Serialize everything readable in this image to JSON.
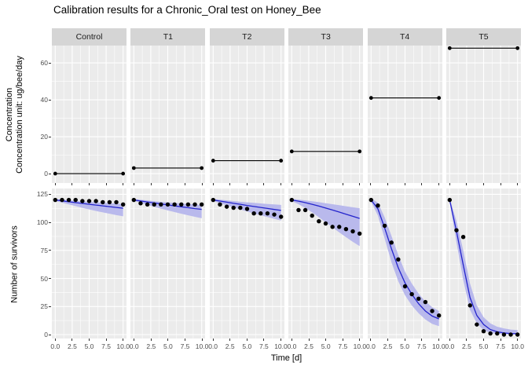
{
  "chart_data": {
    "type": "line",
    "title": "Calibration results for a Chronic_Oral test on Honey_Bee",
    "facets": [
      "Control",
      "T1",
      "T2",
      "T3",
      "T4",
      "T5"
    ],
    "legend_position": "none",
    "grid": "on",
    "x": {
      "label": "Time [d]",
      "tick_labels": [
        "0.0",
        "2.5",
        "5.0",
        "7.5",
        "10.0"
      ],
      "tick_values": [
        0,
        2.5,
        5,
        7.5,
        10
      ],
      "minor_ticks": [
        1.25,
        3.75,
        6.25,
        8.75
      ],
      "lim": [
        -0.5,
        10.5
      ]
    },
    "concentration_row": {
      "ylabel_line1": "Concentration",
      "ylabel_line2": "Concentration unit: ug/bee/day",
      "yticks": [
        0,
        20,
        40,
        60
      ],
      "yminor": [
        10,
        30,
        50
      ],
      "ylim": [
        -5.1,
        69.4
      ],
      "series_type": "constant concentration per facet, line with endpoint dots at day 0 and day 10",
      "values": [
        0,
        3,
        7,
        12,
        41,
        68
      ]
    },
    "survivor_row": {
      "ylabel": "Number of survivors",
      "yticks": [
        0,
        25,
        50,
        75,
        100,
        125
      ],
      "yminor": [
        12.5,
        37.5,
        62.5,
        87.5,
        112.5
      ],
      "ylim": [
        -3.5,
        130.2
      ],
      "days": [
        0,
        1,
        2,
        3,
        4,
        5,
        6,
        7,
        8,
        9,
        10
      ],
      "facet_series": {
        "Control": {
          "observed": [
            120,
            120,
            120,
            120,
            119,
            119,
            119,
            118,
            118,
            118,
            116
          ],
          "fit": [
            120,
            119.2,
            118.4,
            117.6,
            116.9,
            116.1,
            115.4,
            114.7,
            114,
            113.3,
            112.6
          ],
          "ci_upper": [
            120.8,
            120.2,
            119.7,
            119.2,
            118.7,
            118.3,
            117.9,
            117.5,
            117.1,
            116.7,
            116.3
          ],
          "ci_lower": [
            119.2,
            117.6,
            116,
            114.5,
            113,
            111.6,
            110.2,
            108.9,
            107.7,
            106.5,
            105.4
          ]
        },
        "T1": {
          "observed": [
            120,
            117,
            116,
            116,
            116,
            116,
            116,
            116,
            116,
            116,
            116
          ],
          "fit": [
            120,
            119.1,
            118.2,
            117.3,
            116.4,
            115.6,
            114.7,
            113.9,
            113.1,
            112.3,
            111.6
          ],
          "ci_upper": [
            120.8,
            120.1,
            119.5,
            118.9,
            118.3,
            117.8,
            117.3,
            116.8,
            116.3,
            115.9,
            115.5
          ],
          "ci_lower": [
            119.2,
            117.4,
            115.6,
            113.9,
            112.3,
            110.7,
            109.2,
            107.7,
            106.3,
            105,
            103.7
          ]
        },
        "T2": {
          "observed": [
            120,
            116,
            114,
            113,
            113,
            112,
            108,
            108,
            108,
            107,
            105
          ],
          "fit": [
            120,
            119,
            118,
            117,
            116.1,
            115.1,
            114.2,
            113.3,
            112.4,
            111.5,
            110.7
          ],
          "ci_upper": [
            120.9,
            120.2,
            119.6,
            119,
            118.4,
            117.9,
            117.4,
            116.9,
            116.4,
            116,
            115.6
          ],
          "ci_lower": [
            119.1,
            117.1,
            115.2,
            113.3,
            111.5,
            109.7,
            108,
            106.3,
            104.7,
            103.2,
            101.7
          ]
        },
        "T3": {
          "observed": [
            120,
            111,
            111,
            106,
            101,
            99,
            96,
            96,
            94,
            92,
            90
          ],
          "fit": [
            120,
            118.9,
            117.6,
            116.1,
            114.5,
            112.8,
            111,
            109.2,
            107.3,
            105.4,
            103.5
          ],
          "ci_upper": [
            121,
            120.3,
            119.6,
            118.8,
            118,
            117.1,
            116.2,
            115.3,
            114.4,
            113.5,
            112.6
          ],
          "ci_lower": [
            119,
            116.2,
            112.8,
            108.9,
            104.6,
            100.1,
            95.6,
            91.1,
            86.8,
            82.7,
            78.8
          ]
        },
        "T4": {
          "observed": [
            120,
            115,
            97,
            82,
            67,
            43,
            36,
            32,
            29,
            21,
            17
          ],
          "fit": [
            120,
            112,
            95,
            76.5,
            59.5,
            46,
            36,
            27.5,
            21,
            16.5,
            14
          ],
          "ci_upper": [
            121.5,
            117.5,
            104.5,
            88,
            71,
            56,
            45.5,
            36.5,
            29.5,
            24.5,
            21
          ],
          "ci_lower": [
            118.5,
            106,
            85.5,
            64.5,
            47.5,
            35,
            26,
            19,
            13.5,
            9.5,
            7.5
          ]
        },
        "T5": {
          "observed": [
            120,
            93,
            87,
            26,
            9,
            3,
            1,
            1,
            0,
            0,
            0
          ],
          "fit": [
            120,
            92,
            62,
            33,
            17,
            9,
            4.5,
            2.5,
            1.5,
            1,
            0.8
          ],
          "ci_upper": [
            121.5,
            101,
            75,
            45.5,
            26,
            15.5,
            10,
            7,
            5.5,
            4.5,
            4
          ],
          "ci_lower": [
            118.5,
            82,
            48.5,
            22,
            10,
            4,
            1.5,
            0.6,
            0.3,
            0.2,
            0.1
          ]
        }
      }
    },
    "colors": {
      "panel_bg": "#ebebeb",
      "strip_bg": "#d5d5d5",
      "grid": "#ffffff",
      "ribbon": "#b9b9ec",
      "fit_line": "#2424cc",
      "observed_point": "#000000",
      "concentration_line": "#000000",
      "axis_text": "#4d4d4d",
      "tick_mark": "#333333"
    }
  }
}
